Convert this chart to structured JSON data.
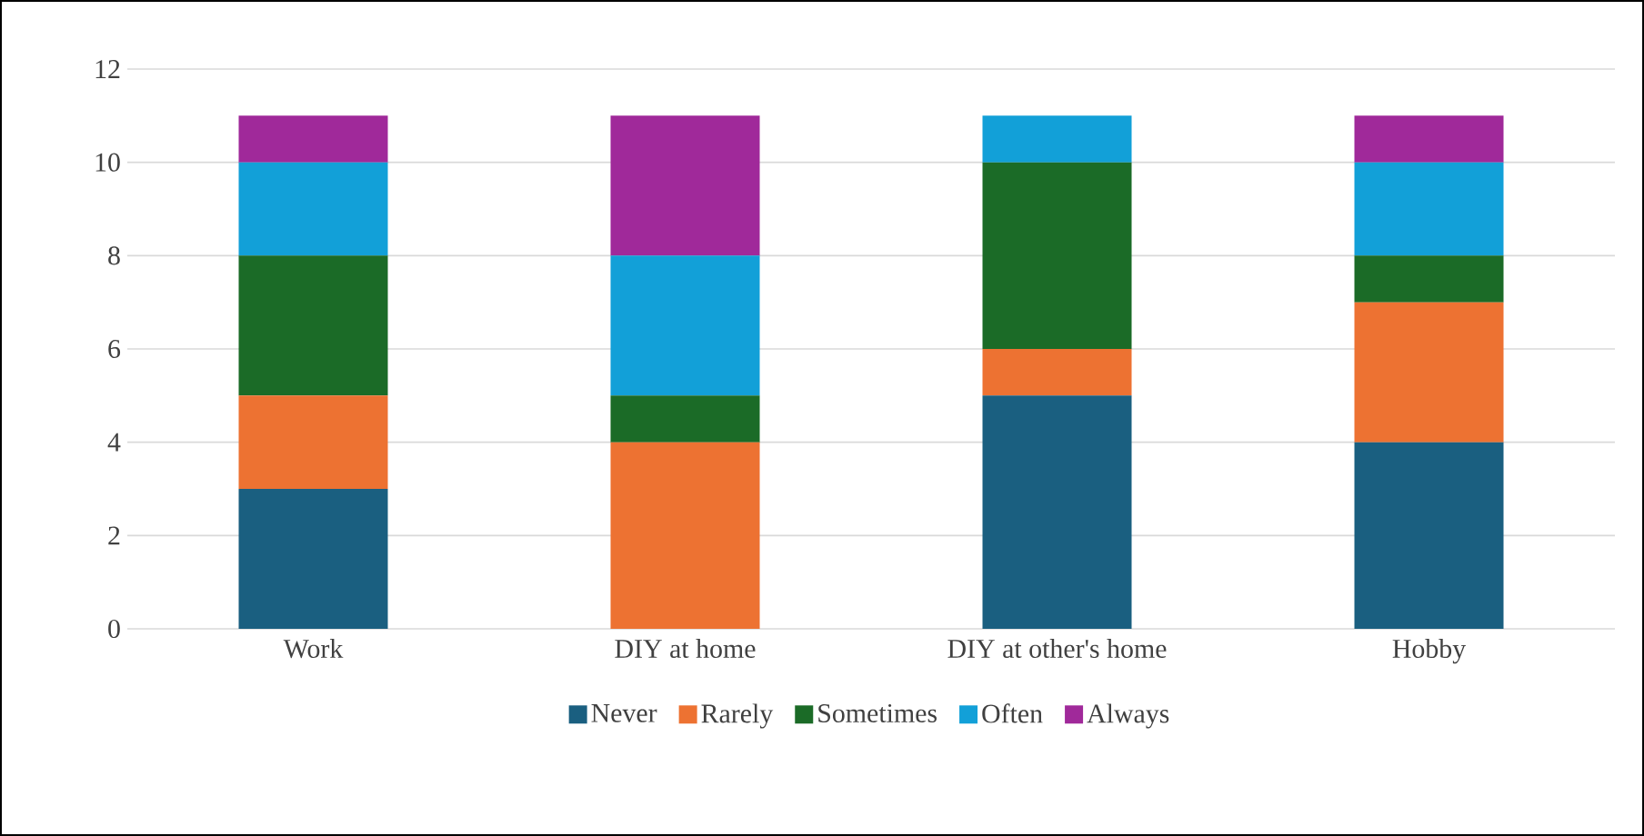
{
  "chart_data": {
    "type": "bar",
    "stacked": true,
    "categories": [
      "Work",
      "DIY at home",
      "DIY at other's home",
      "Hobby"
    ],
    "series": [
      {
        "name": "Never",
        "color": "#1a5f80",
        "values": [
          3,
          0,
          5,
          4
        ]
      },
      {
        "name": "Rarely",
        "color": "#ed7232",
        "values": [
          2,
          4,
          1,
          3
        ]
      },
      {
        "name": "Sometimes",
        "color": "#1b6b27",
        "values": [
          3,
          1,
          4,
          1
        ]
      },
      {
        "name": "Often",
        "color": "#12a0d8",
        "values": [
          2,
          3,
          1,
          2
        ]
      },
      {
        "name": "Always",
        "color": "#a0299a",
        "values": [
          1,
          3,
          0,
          1
        ]
      }
    ],
    "ylim": [
      0,
      12
    ],
    "yticks": [
      0,
      2,
      4,
      6,
      8,
      10,
      12
    ],
    "grid": "y",
    "legend": "bottom"
  }
}
